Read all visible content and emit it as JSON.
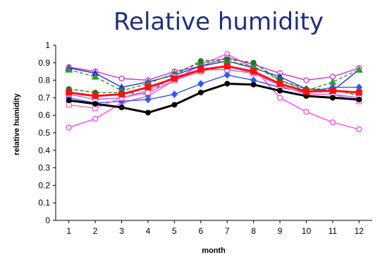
{
  "chart_data": {
    "type": "line",
    "title": "Relative humidity",
    "xlabel": "month",
    "ylabel": "relative humidity",
    "x": [
      1,
      2,
      3,
      4,
      5,
      6,
      7,
      8,
      9,
      10,
      11,
      12
    ],
    "xticks": [
      "1",
      "2",
      "3",
      "4",
      "5",
      "6",
      "7",
      "8",
      "9",
      "10",
      "11",
      "12"
    ],
    "ylim": [
      0,
      1
    ],
    "yticks": [
      "0",
      "0.1",
      "0.2",
      "0.3",
      "0.4",
      "0.5",
      "0.6",
      "0.7",
      "0.8",
      "0.9",
      "1"
    ],
    "grid": false,
    "legend": "none",
    "series": [
      {
        "color": "#ff44ff",
        "marker": "circle-open",
        "dash": "solid",
        "values": [
          0.53,
          0.58,
          0.67,
          0.71,
          0.8,
          0.89,
          0.95,
          0.87,
          0.7,
          0.62,
          0.56,
          0.52
        ]
      },
      {
        "color": "#cc33cc",
        "marker": "circle-open",
        "dash": "solid",
        "values": [
          0.875,
          0.85,
          0.81,
          0.8,
          0.85,
          0.88,
          0.93,
          0.89,
          0.84,
          0.8,
          0.82,
          0.87
        ]
      },
      {
        "color": "#2233cc",
        "marker": "triangle",
        "dash": "solid",
        "values": [
          0.87,
          0.84,
          0.76,
          0.79,
          0.83,
          0.88,
          0.91,
          0.87,
          0.82,
          0.75,
          0.74,
          0.86
        ]
      },
      {
        "color": "#339933",
        "marker": "triangle",
        "dash": "dashed",
        "values": [
          0.86,
          0.82,
          0.74,
          0.78,
          0.84,
          0.9,
          0.91,
          0.88,
          0.8,
          0.74,
          0.79,
          0.86
        ]
      },
      {
        "color": "#227722",
        "marker": "circle",
        "dash": "dashed",
        "values": [
          0.75,
          0.73,
          0.73,
          0.72,
          0.83,
          0.91,
          0.92,
          0.9,
          0.8,
          0.75,
          0.75,
          0.71
        ]
      },
      {
        "color": "#3355ff",
        "marker": "diamond",
        "dash": "solid",
        "values": [
          0.7,
          0.67,
          0.68,
          0.69,
          0.72,
          0.78,
          0.83,
          0.8,
          0.76,
          0.73,
          0.76,
          0.76
        ]
      },
      {
        "color": "#aa66ff",
        "marker": "square-open",
        "dash": "solid",
        "values": [
          0.72,
          0.69,
          0.7,
          0.74,
          0.82,
          0.86,
          0.86,
          0.84,
          0.77,
          0.72,
          0.72,
          0.7
        ]
      },
      {
        "color": "#ff66cc",
        "marker": "square-open",
        "dash": "solid",
        "values": [
          0.66,
          0.64,
          0.7,
          0.73,
          0.8,
          0.85,
          0.88,
          0.84,
          0.77,
          0.72,
          0.72,
          0.68
        ]
      },
      {
        "color": "#000000",
        "marker": "circle",
        "dash": "solid",
        "values": [
          0.685,
          0.665,
          0.645,
          0.615,
          0.66,
          0.73,
          0.78,
          0.775,
          0.74,
          0.71,
          0.7,
          0.69
        ]
      },
      {
        "color": "#ff1111",
        "marker": "square",
        "dash": "solid",
        "values": [
          0.73,
          0.71,
          0.72,
          0.76,
          0.81,
          0.86,
          0.88,
          0.85,
          0.78,
          0.735,
          0.74,
          0.73
        ]
      }
    ]
  }
}
